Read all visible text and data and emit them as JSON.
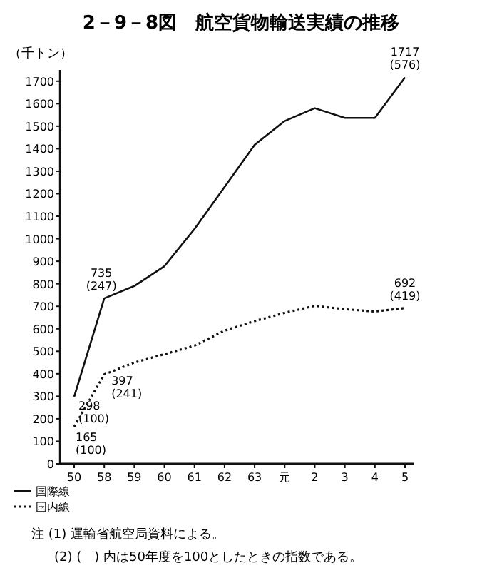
{
  "chart_data": {
    "type": "line",
    "title": "2－9－8図　航空貨物輸送実績の推移",
    "ylabel": "（千トン）",
    "categories": [
      "50",
      "58",
      "59",
      "60",
      "61",
      "62",
      "63",
      "元",
      "2",
      "3",
      "4",
      "5"
    ],
    "series": [
      {
        "name": "国際線",
        "color": "#111111",
        "line_style": "solid",
        "values": [
          298,
          735,
          790,
          878,
          1043,
          1230,
          1417,
          1523,
          1580,
          1537,
          1537,
          1717
        ],
        "value_labels": [
          "298 (100)",
          "735 (247)",
          null,
          null,
          null,
          null,
          null,
          null,
          null,
          null,
          null,
          "1717 (576)"
        ]
      },
      {
        "name": "国内線",
        "color": "#111111",
        "line_style": "dotted",
        "values": [
          165,
          397,
          450,
          487,
          525,
          592,
          634,
          671,
          702,
          687,
          677,
          692
        ],
        "value_labels": [
          "165 (100)",
          "397 (241)",
          null,
          null,
          null,
          null,
          null,
          null,
          null,
          null,
          null,
          "692 (419)"
        ]
      }
    ],
    "ylim": [
      0,
      1750
    ],
    "yticks": [
      0,
      100,
      200,
      300,
      400,
      500,
      600,
      700,
      800,
      900,
      1000,
      1100,
      1200,
      1300,
      1400,
      1500,
      1600,
      1700
    ],
    "legend": "bottom left",
    "marker": "none",
    "annotations": [
      "注 (1) 運輸省航空局資料による。",
      "(2) (　) 内は50年度を100としたときの指数である。"
    ]
  }
}
